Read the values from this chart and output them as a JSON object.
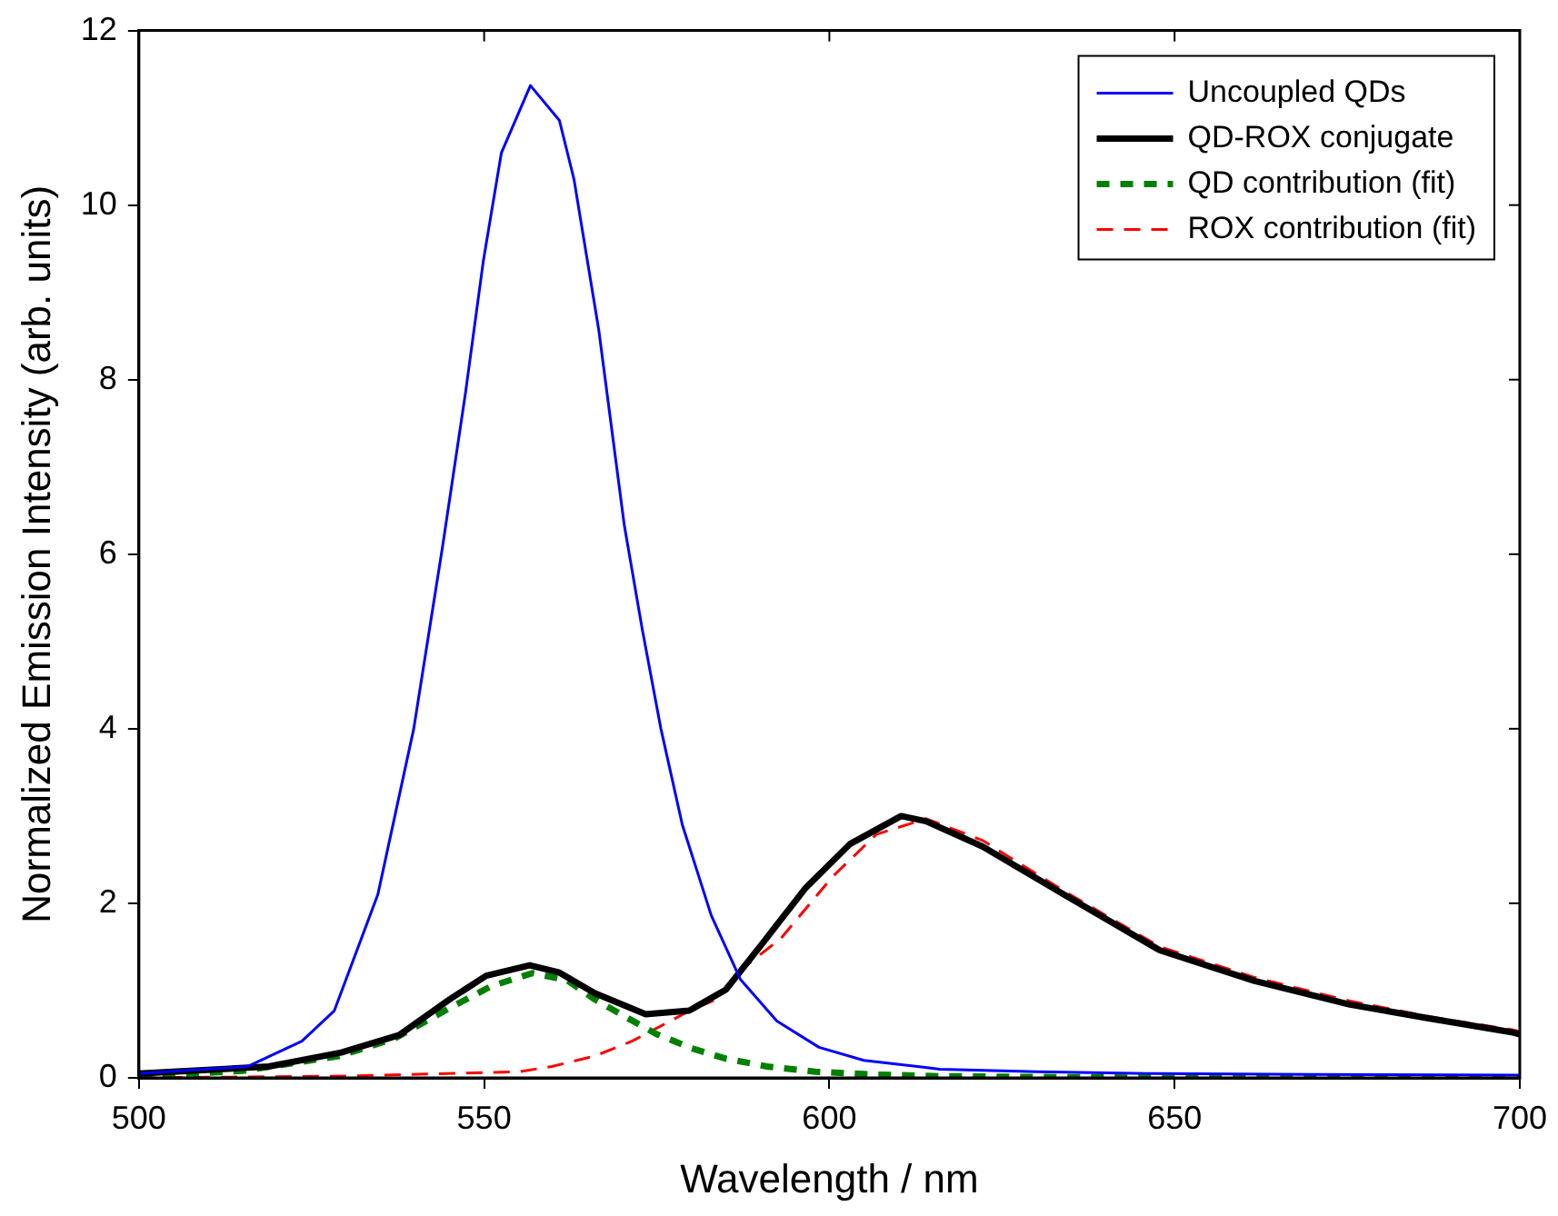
{
  "chart_data": {
    "type": "line",
    "xlabel": "Wavelength / nm",
    "ylabel": "Normalized Emission Intensity (arb. units)",
    "xlim": [
      500,
      700
    ],
    "xticks": [
      500,
      550,
      600,
      650,
      700
    ],
    "ylim": [
      0,
      12
    ],
    "yticks": [
      0,
      2,
      4,
      6,
      8,
      10,
      12
    ],
    "grid": false,
    "legend": "top right",
    "marker": "none",
    "series": [
      {
        "name": "Uncoupled QDs",
        "color": "#0000ff",
        "line_style": "solid",
        "x": [
          500,
          515.7,
          523.6,
          528.3,
          534.6,
          539.8,
          544,
          547.3,
          549.9,
          552.5,
          556.7,
          560.9,
          563,
          566.6,
          570.3,
          572.9,
          575.6,
          578.7,
          582.9,
          587.1,
          592.4,
          598.5,
          605,
          616,
          630,
          646,
          670,
          700
        ],
        "values": [
          0.05,
          0.13,
          0.42,
          0.77,
          2.1,
          4.0,
          6.1,
          7.85,
          9.37,
          10.6,
          11.37,
          10.97,
          10.3,
          8.57,
          6.33,
          5.14,
          4.0,
          2.9,
          1.86,
          1.13,
          0.65,
          0.35,
          0.2,
          0.1,
          0.07,
          0.05,
          0.04,
          0.03
        ]
      },
      {
        "name": "QD-ROX conjugate",
        "color": "#000000",
        "line_style": "solid",
        "x": [
          500,
          518.8,
          529.3,
          537.7,
          545,
          550.3,
          556.6,
          560.8,
          566,
          573.4,
          579.7,
          585,
          590.2,
          596.5,
          603,
          610.4,
          614,
          622.2,
          634.2,
          647.9,
          661.6,
          675.4,
          687,
          699,
          700
        ],
        "values": [
          0.05,
          0.13,
          0.29,
          0.49,
          0.9,
          1.17,
          1.29,
          1.21,
          0.97,
          0.73,
          0.77,
          1.01,
          1.53,
          2.17,
          2.68,
          3.0,
          2.94,
          2.65,
          2.09,
          1.46,
          1.11,
          0.84,
          0.68,
          0.52,
          0.5
        ]
      },
      {
        "name": "QD contribution (fit)",
        "color": "#008000",
        "line_style": "dashed",
        "x": [
          500,
          515,
          529,
          537,
          545,
          551,
          557,
          562,
          566,
          570,
          575,
          580,
          585,
          591,
          598,
          606,
          615,
          630,
          650,
          700
        ],
        "values": [
          0.02,
          0.08,
          0.25,
          0.45,
          0.8,
          1.05,
          1.2,
          1.12,
          0.9,
          0.72,
          0.5,
          0.34,
          0.22,
          0.13,
          0.07,
          0.04,
          0.02,
          0.01,
          0,
          0
        ]
      },
      {
        "name": "ROX contribution (fit)",
        "color": "#ff0000",
        "line_style": "dashed",
        "x": [
          500,
          530,
          555,
          559.8,
          566,
          571.4,
          579.8,
          583.9,
          588.2,
          593,
          600.4,
          606.8,
          614,
          622.2,
          634.2,
          647.9,
          661.6,
          675.4,
          687,
          699,
          700
        ],
        "values": [
          0.0,
          0.02,
          0.07,
          0.13,
          0.25,
          0.42,
          0.77,
          0.91,
          1.3,
          1.6,
          2.3,
          2.79,
          2.97,
          2.72,
          2.13,
          1.5,
          1.15,
          0.88,
          0.7,
          0.55,
          0.53
        ]
      }
    ]
  }
}
